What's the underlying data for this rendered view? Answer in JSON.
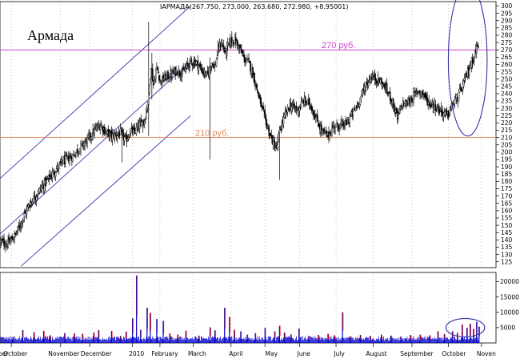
{
  "chart_data": {
    "type": "candlestick",
    "header": "IAРМАДА(267.750, 273.000, 263.680, 272.980, +8.95001)",
    "title": "Армада",
    "price_axis": {
      "ylim": [
        121,
        303
      ],
      "ticks": [
        125,
        130,
        135,
        140,
        145,
        150,
        155,
        160,
        165,
        170,
        175,
        180,
        185,
        190,
        195,
        200,
        205,
        210,
        215,
        220,
        225,
        230,
        235,
        240,
        245,
        250,
        255,
        260,
        265,
        270,
        275,
        280,
        285,
        290,
        295,
        300
      ]
    },
    "volume_axis": {
      "ylim": [
        0,
        23000
      ],
      "ticks": [
        5000,
        10000,
        15000,
        20000
      ],
      "tick_labels": [
        "5000",
        "10000",
        "15000",
        "20000"
      ]
    },
    "x_labels": [
      "ber",
      "October",
      "November",
      "December",
      "2010",
      "February",
      "March",
      "April",
      "May",
      "June",
      "July",
      "August",
      "September",
      "October",
      "Noven"
    ],
    "x_label_days": [
      -10,
      5,
      65,
      105,
      155,
      190,
      230,
      278,
      322,
      362,
      406,
      452,
      502,
      548,
      588
    ],
    "x_range": [
      -14,
      600
    ],
    "month_separators": [
      0,
      61,
      97,
      150,
      184,
      225,
      272,
      314,
      357,
      402,
      448,
      496,
      541,
      582
    ],
    "levels": [
      {
        "value": 270,
        "label": "270 руб.",
        "color": "#cc44cc"
      },
      {
        "value": 210,
        "label": "210 руб.",
        "color": "#e08a5a"
      }
    ],
    "channel": {
      "color": "#3333aa",
      "lines": [
        {
          "x1": -14,
          "y1": 182,
          "x2": 222,
          "y2": 300
        },
        {
          "x1": -14,
          "y1": 144,
          "x2": 222,
          "y2": 262
        },
        {
          "x1": 12,
          "y1": 122,
          "x2": 222,
          "y2": 225
        }
      ]
    },
    "highlight_ellipses": [
      {
        "cx": 565,
        "cy": 263,
        "rx": 24,
        "ry": 52,
        "panel": "price"
      },
      {
        "cx": 562,
        "cy": 5000,
        "rx": 24,
        "ry": 3000,
        "panel": "volume"
      }
    ],
    "price_path": [
      [
        -14,
        139
      ],
      [
        -5,
        137
      ],
      [
        5,
        143
      ],
      [
        12,
        152
      ],
      [
        22,
        164
      ],
      [
        35,
        174
      ],
      [
        45,
        181
      ],
      [
        55,
        188
      ],
      [
        65,
        194
      ],
      [
        75,
        197
      ],
      [
        85,
        203
      ],
      [
        95,
        209
      ],
      [
        102,
        214
      ],
      [
        110,
        219
      ],
      [
        118,
        213
      ],
      [
        125,
        211
      ],
      [
        135,
        213
      ],
      [
        142,
        208
      ],
      [
        148,
        215
      ],
      [
        152,
        213
      ],
      [
        158,
        218
      ],
      [
        165,
        222
      ],
      [
        170,
        238
      ],
      [
        173,
        260
      ],
      [
        176,
        246
      ],
      [
        180,
        258
      ],
      [
        185,
        248
      ],
      [
        190,
        251
      ],
      [
        198,
        253
      ],
      [
        205,
        256
      ],
      [
        212,
        254
      ],
      [
        220,
        261
      ],
      [
        228,
        262
      ],
      [
        236,
        256
      ],
      [
        242,
        252
      ],
      [
        248,
        262
      ],
      [
        252,
        258
      ],
      [
        256,
        270
      ],
      [
        260,
        275
      ],
      [
        265,
        268
      ],
      [
        270,
        275
      ],
      [
        276,
        277
      ],
      [
        282,
        272
      ],
      [
        288,
        264
      ],
      [
        294,
        261
      ],
      [
        300,
        252
      ],
      [
        305,
        241
      ],
      [
        310,
        230
      ],
      [
        315,
        221
      ],
      [
        320,
        212
      ],
      [
        324,
        207
      ],
      [
        328,
        202
      ],
      [
        333,
        216
      ],
      [
        338,
        224
      ],
      [
        345,
        232
      ],
      [
        355,
        229
      ],
      [
        362,
        235
      ],
      [
        370,
        233
      ],
      [
        378,
        222
      ],
      [
        385,
        214
      ],
      [
        392,
        211
      ],
      [
        399,
        218
      ],
      [
        406,
        218
      ],
      [
        414,
        219
      ],
      [
        422,
        226
      ],
      [
        430,
        234
      ],
      [
        438,
        245
      ],
      [
        446,
        252
      ],
      [
        452,
        250
      ],
      [
        458,
        248
      ],
      [
        465,
        242
      ],
      [
        471,
        236
      ],
      [
        478,
        223
      ],
      [
        484,
        233
      ],
      [
        490,
        233
      ],
      [
        498,
        238
      ],
      [
        504,
        242
      ],
      [
        510,
        240
      ],
      [
        516,
        234
      ],
      [
        522,
        233
      ],
      [
        528,
        230
      ],
      [
        534,
        227
      ],
      [
        540,
        225
      ],
      [
        546,
        232
      ],
      [
        552,
        237
      ],
      [
        558,
        244
      ],
      [
        564,
        253
      ],
      [
        570,
        262
      ],
      [
        574,
        268
      ],
      [
        578,
        274
      ]
    ],
    "price_spikes": [
      {
        "day": 170,
        "high": 289,
        "low": 211
      },
      {
        "day": 174,
        "high": 268,
        "low": 236
      },
      {
        "day": 246,
        "high": 265,
        "low": 195
      },
      {
        "day": 332,
        "high": 208,
        "low": 181
      },
      {
        "day": 137,
        "high": 205,
        "low": 193
      }
    ],
    "volume_spikes": [
      {
        "day": 2,
        "value": 2000
      },
      {
        "day": 14,
        "value": 4200
      },
      {
        "day": 28,
        "value": 3500
      },
      {
        "day": 40,
        "value": 3900
      },
      {
        "day": 48,
        "value": 2500
      },
      {
        "day": 66,
        "value": 3200
      },
      {
        "day": 78,
        "value": 3100
      },
      {
        "day": 88,
        "value": 3000
      },
      {
        "day": 102,
        "value": 3400
      },
      {
        "day": 108,
        "value": 4200
      },
      {
        "day": 124,
        "value": 3900
      },
      {
        "day": 135,
        "value": 2300
      },
      {
        "day": 142,
        "value": 3700
      },
      {
        "day": 150,
        "value": 8000
      },
      {
        "day": 155,
        "value": 22000
      },
      {
        "day": 160,
        "value": 4300
      },
      {
        "day": 168,
        "value": 11500
      },
      {
        "day": 172,
        "value": 9800
      },
      {
        "day": 180,
        "value": 7800
      },
      {
        "day": 188,
        "value": 7200
      },
      {
        "day": 196,
        "value": 3100
      },
      {
        "day": 206,
        "value": 2700
      },
      {
        "day": 216,
        "value": 4000
      },
      {
        "day": 232,
        "value": 2400
      },
      {
        "day": 246,
        "value": 5100
      },
      {
        "day": 252,
        "value": 4100
      },
      {
        "day": 264,
        "value": 11500
      },
      {
        "day": 270,
        "value": 8500
      },
      {
        "day": 276,
        "value": 4300
      },
      {
        "day": 284,
        "value": 3800
      },
      {
        "day": 292,
        "value": 2700
      },
      {
        "day": 302,
        "value": 3200
      },
      {
        "day": 314,
        "value": 4900
      },
      {
        "day": 326,
        "value": 3800
      },
      {
        "day": 332,
        "value": 5600
      },
      {
        "day": 338,
        "value": 3400
      },
      {
        "day": 346,
        "value": 2800
      },
      {
        "day": 356,
        "value": 4700
      },
      {
        "day": 368,
        "value": 2300
      },
      {
        "day": 380,
        "value": 2600
      },
      {
        "day": 392,
        "value": 3000
      },
      {
        "day": 400,
        "value": 2500
      },
      {
        "day": 410,
        "value": 10000
      },
      {
        "day": 420,
        "value": 2200
      },
      {
        "day": 432,
        "value": 2600
      },
      {
        "day": 444,
        "value": 2300
      },
      {
        "day": 458,
        "value": 2700
      },
      {
        "day": 470,
        "value": 2400
      },
      {
        "day": 482,
        "value": 2100
      },
      {
        "day": 494,
        "value": 2600
      },
      {
        "day": 506,
        "value": 2700
      },
      {
        "day": 518,
        "value": 2500
      },
      {
        "day": 528,
        "value": 3800
      },
      {
        "day": 536,
        "value": 2900
      },
      {
        "day": 546,
        "value": 3800
      },
      {
        "day": 552,
        "value": 3300
      },
      {
        "day": 558,
        "value": 6000
      },
      {
        "day": 564,
        "value": 4900
      },
      {
        "day": 568,
        "value": 6300
      },
      {
        "day": 572,
        "value": 4600
      },
      {
        "day": 576,
        "value": 6900
      },
      {
        "day": 579,
        "value": 5300
      }
    ],
    "volume_base": 2000,
    "volume_noise": 1400,
    "colors": {
      "up": "#000000",
      "down": "#000000",
      "volume": "#0000cc",
      "volume_peak": "#cc0000",
      "grid": "#000000"
    }
  }
}
